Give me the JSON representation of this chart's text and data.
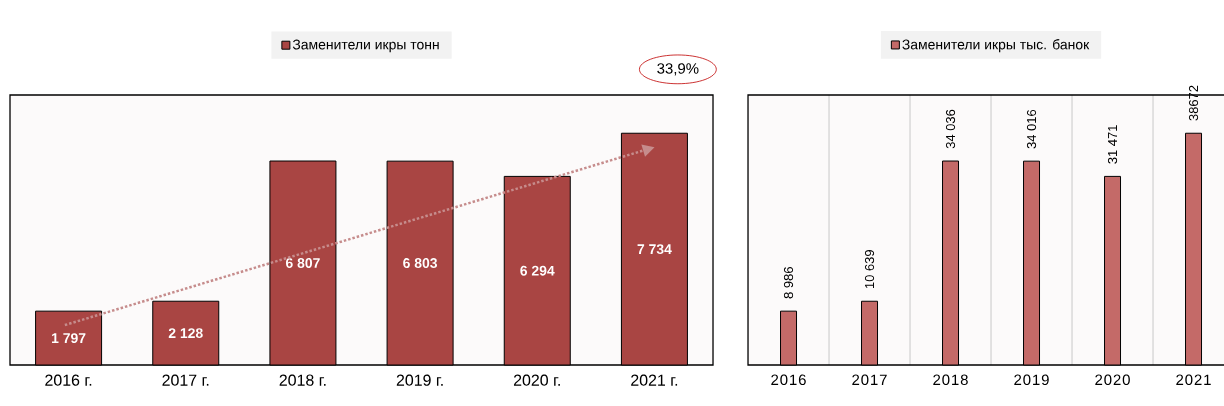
{
  "chart_data": [
    {
      "type": "bar",
      "categories": [
        "2016 г.",
        "2017 г.",
        "2018 г.",
        "2019 г.",
        "2020 г.",
        "2021 г."
      ],
      "series": [
        {
          "name": "Заменители икры тонн",
          "color": "#a94543",
          "values": [
            1797,
            2128,
            6807,
            6803,
            6294,
            7734
          ],
          "value_labels": [
            "1 797",
            "2 128",
            "6 807",
            "6 803",
            "6 294",
            "7 734"
          ]
        }
      ],
      "annotations": [
        "33,9%"
      ],
      "legend": "top"
    },
    {
      "type": "bar",
      "categories": [
        "2016",
        "2017",
        "2018",
        "2019",
        "2020",
        "2021"
      ],
      "series": [
        {
          "name": "Заменители икры тыс. банок",
          "color": "#c46a68",
          "values": [
            8986,
            10639,
            34036,
            34016,
            31471,
            38672
          ],
          "value_labels": [
            "8 986",
            "10 639",
            "34 036",
            "34 016",
            "31 471",
            "38672"
          ]
        }
      ],
      "grid": "x",
      "legend": "top"
    }
  ]
}
